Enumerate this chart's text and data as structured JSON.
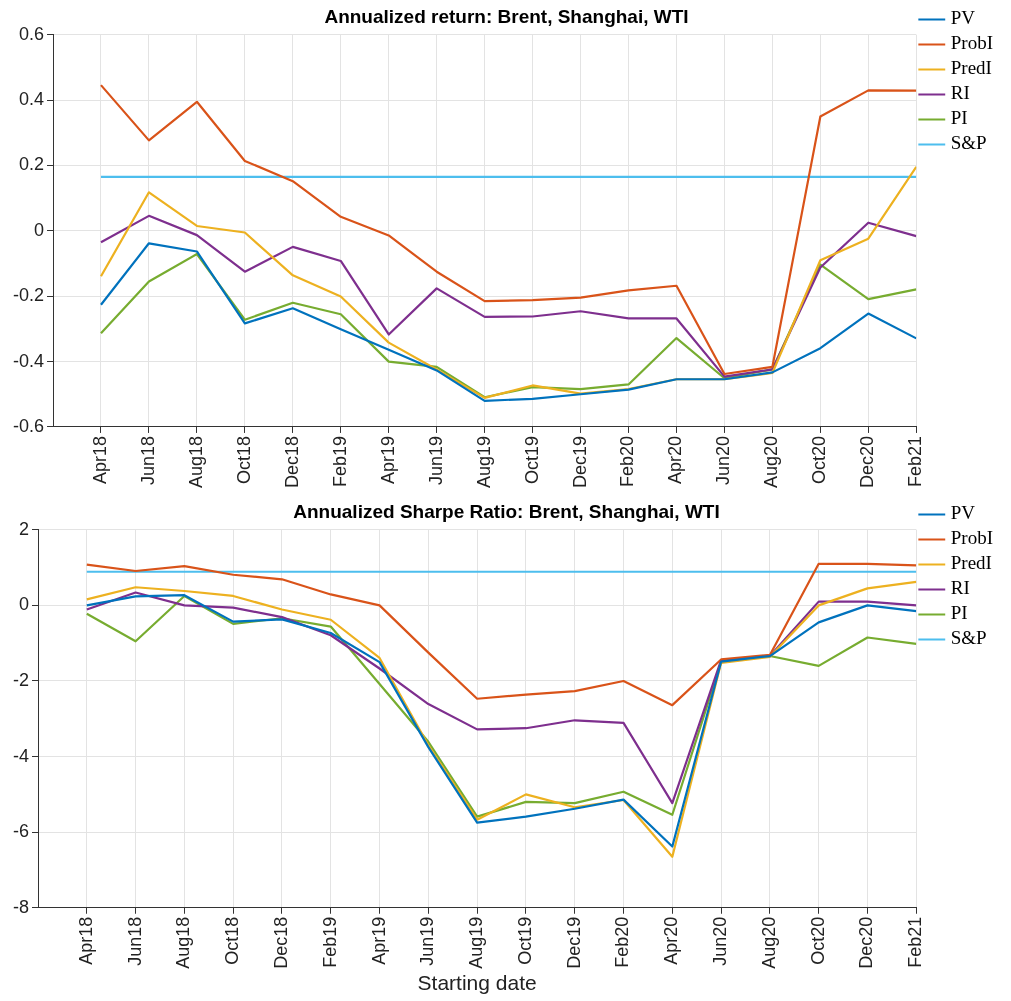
{
  "chart_data": [
    {
      "type": "line",
      "title": "Annualized return: Brent, Shanghai, WTI",
      "categories": [
        "Apr18",
        "Jun18",
        "Aug18",
        "Oct18",
        "Dec18",
        "Feb19",
        "Apr19",
        "Jun19",
        "Aug19",
        "Oct19",
        "Dec19",
        "Feb20",
        "Apr20",
        "Jun20",
        "Aug20",
        "Oct20",
        "Dec20",
        "Feb21"
      ],
      "series": [
        {
          "name": "PV",
          "color": "#0072bd",
          "values": [
            -0.226,
            -0.038,
            -0.063,
            -0.283,
            -0.237,
            -0.301,
            -0.364,
            -0.427,
            -0.52,
            -0.514,
            -0.5,
            -0.486,
            -0.454,
            -0.454,
            -0.433,
            -0.359,
            -0.253,
            -0.329
          ]
        },
        {
          "name": "ProbI",
          "color": "#d95319",
          "values": [
            0.446,
            0.277,
            0.395,
            0.214,
            0.152,
            0.043,
            -0.014,
            -0.125,
            -0.215,
            -0.212,
            -0.204,
            -0.182,
            -0.168,
            -0.438,
            -0.416,
            0.35,
            0.43,
            0.429
          ]
        },
        {
          "name": "PredI",
          "color": "#edb120",
          "values": [
            -0.139,
            0.118,
            0.015,
            -0.005,
            -0.136,
            -0.201,
            -0.342,
            -0.424,
            -0.511,
            -0.473,
            -0.498,
            -0.484,
            -0.454,
            -0.454,
            -0.435,
            -0.09,
            -0.024,
            0.196
          ]
        },
        {
          "name": "RI",
          "color": "#7e2f8e",
          "values": [
            -0.035,
            0.046,
            -0.013,
            -0.125,
            -0.049,
            -0.092,
            -0.317,
            -0.176,
            -0.263,
            -0.262,
            -0.246,
            -0.268,
            -0.268,
            -0.446,
            -0.424,
            -0.112,
            0.025,
            -0.016
          ]
        },
        {
          "name": "PI",
          "color": "#77ac30",
          "values": [
            -0.313,
            -0.155,
            -0.071,
            -0.272,
            -0.22,
            -0.255,
            -0.4,
            -0.416,
            -0.509,
            -0.478,
            -0.484,
            -0.47,
            -0.328,
            -0.451,
            -0.424,
            -0.103,
            -0.209,
            -0.179
          ]
        },
        {
          "name": "S&P",
          "color": "#4dbeee",
          "values": [
            0.165,
            0.165,
            0.165,
            0.165,
            0.165,
            0.165,
            0.165,
            0.165,
            0.165,
            0.165,
            0.165,
            0.165,
            0.165,
            0.165,
            0.165,
            0.165,
            0.165,
            0.165
          ]
        }
      ],
      "ylim": [
        -0.6,
        0.6
      ],
      "yticks": [
        -0.6,
        -0.4,
        -0.2,
        0,
        0.2,
        0.4,
        0.6
      ],
      "grid": true,
      "legend": "right"
    },
    {
      "type": "line",
      "title": "Annualized Sharpe Ratio: Brent, Shanghai, WTI",
      "xlabel": "Starting date",
      "categories": [
        "Apr18",
        "Jun18",
        "Aug18",
        "Oct18",
        "Dec18",
        "Feb19",
        "Apr19",
        "Jun19",
        "Aug19",
        "Oct19",
        "Dec19",
        "Feb20",
        "Apr20",
        "Jun20",
        "Aug20",
        "Oct20",
        "Dec20",
        "Feb21"
      ],
      "series": [
        {
          "name": "PV",
          "color": "#0072bd",
          "values": [
            0,
            0.24,
            0.27,
            -0.43,
            -0.37,
            -0.73,
            -1.5,
            -3.75,
            -5.75,
            -5.59,
            -5.38,
            -5.14,
            -6.38,
            -1.49,
            -1.34,
            -0.45,
            0,
            -0.15
          ]
        },
        {
          "name": "ProbI",
          "color": "#d95319",
          "values": [
            1.08,
            0.91,
            1.04,
            0.81,
            0.69,
            0.29,
            0,
            -1.25,
            -2.47,
            -2.36,
            -2.27,
            -2.0,
            -2.64,
            -1.43,
            -1.31,
            1.1,
            1.1,
            1.06
          ]
        },
        {
          "name": "PredI",
          "color": "#edb120",
          "values": [
            0.16,
            0.48,
            0.38,
            0.25,
            -0.11,
            -0.38,
            -1.39,
            -3.7,
            -5.67,
            -5.0,
            -5.34,
            -5.15,
            -6.65,
            -1.52,
            -1.36,
            0,
            0.45,
            0.62
          ]
        },
        {
          "name": "RI",
          "color": "#7e2f8e",
          "values": [
            -0.11,
            0.34,
            0,
            -0.06,
            -0.31,
            -0.79,
            -1.67,
            -2.61,
            -3.28,
            -3.25,
            -3.04,
            -3.11,
            -5.23,
            -1.45,
            -1.34,
            0.1,
            0.1,
            0
          ]
        },
        {
          "name": "PI",
          "color": "#77ac30",
          "values": [
            -0.22,
            -0.95,
            0.25,
            -0.49,
            -0.34,
            -0.56,
            -2.08,
            -3.61,
            -5.59,
            -5.2,
            -5.23,
            -4.93,
            -5.54,
            -1.5,
            -1.34,
            -1.6,
            -0.85,
            -1.02
          ]
        },
        {
          "name": "S&P",
          "color": "#4dbeee",
          "values": [
            0.89,
            0.89,
            0.89,
            0.89,
            0.89,
            0.89,
            0.89,
            0.89,
            0.89,
            0.89,
            0.89,
            0.89,
            0.89,
            0.89,
            0.89,
            0.89,
            0.89,
            0.89
          ]
        }
      ],
      "ylim": [
        -8,
        2
      ],
      "yticks": [
        -8,
        -6,
        -4,
        -2,
        0,
        2
      ],
      "grid": true,
      "legend": "right"
    }
  ]
}
